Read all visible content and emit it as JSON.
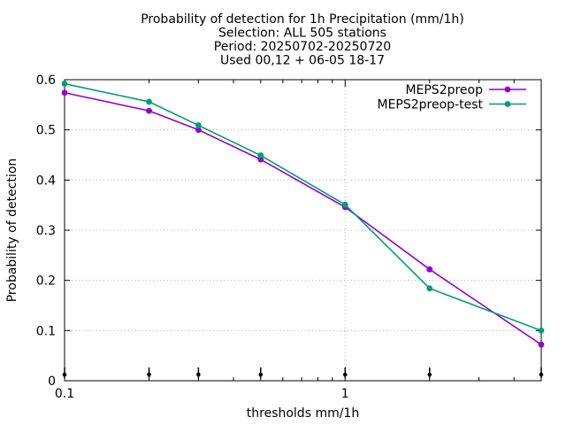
{
  "chart_data": {
    "type": "line",
    "title_lines": [
      "Probability of detection  for 1h Precipitation (mm/1h)",
      "Selection: ALL    505 stations",
      "Period: 20250702-20250720",
      "Used 00,12 + 06-05 18-17"
    ],
    "xlabel": "thresholds mm/1h",
    "ylabel": "Probability of detection",
    "x_scale": "log",
    "xlim": [
      0.1,
      5
    ],
    "ylim": [
      0,
      0.6
    ],
    "x_ticks_major": [
      0.1,
      1
    ],
    "x_tick_labels": [
      "0.1",
      "1"
    ],
    "x_ticks_minor": [
      0.2,
      0.3,
      0.4,
      0.5,
      0.6,
      0.7,
      0.8,
      0.9,
      2,
      3,
      4,
      5
    ],
    "y_ticks": [
      0,
      0.1,
      0.2,
      0.3,
      0.4,
      0.5,
      0.6
    ],
    "y_tick_labels": [
      "0",
      "0.1",
      "0.2",
      "0.3",
      "0.4",
      "0.5",
      "0.6"
    ],
    "grid": true,
    "legend_position": "top-right",
    "x": [
      0.1,
      0.2,
      0.3,
      0.5,
      1,
      2,
      5
    ],
    "series": [
      {
        "name": "MEPS2preop",
        "color": "#9400d3",
        "values": [
          0.574,
          0.538,
          0.5,
          0.441,
          0.346,
          0.222,
          0.072
        ]
      },
      {
        "name": "MEPS2preop-test",
        "color": "#009e73",
        "values": [
          0.592,
          0.556,
          0.509,
          0.449,
          0.351,
          0.184,
          0.1
        ]
      }
    ],
    "baseline_markers_x": [
      0.1,
      0.2,
      0.3,
      0.5,
      1,
      2,
      5
    ]
  }
}
